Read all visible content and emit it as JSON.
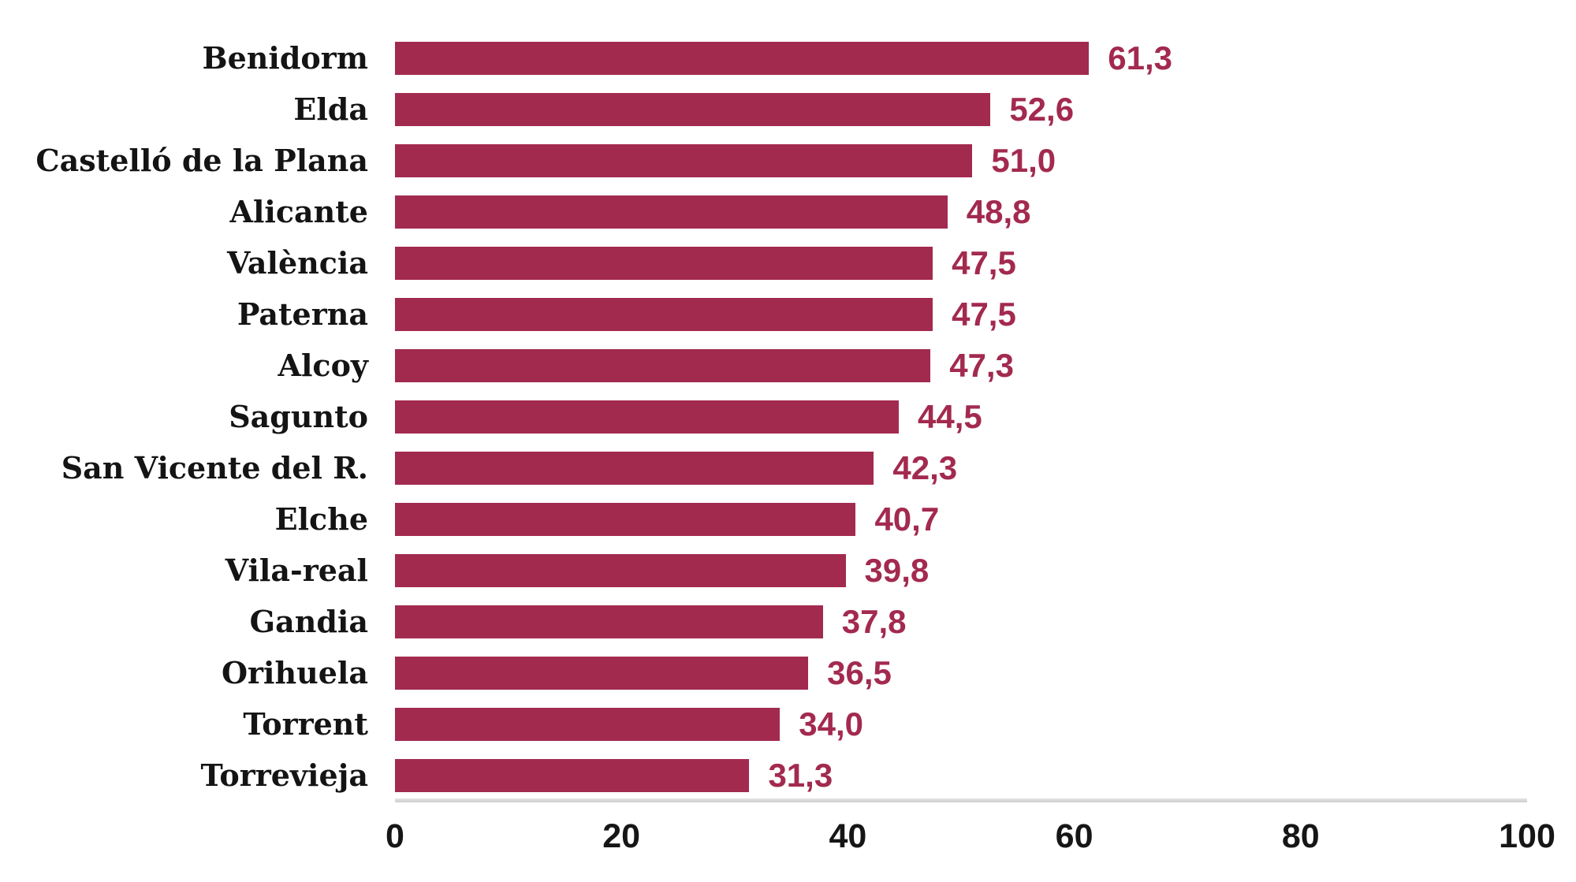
{
  "chart_data": {
    "type": "bar",
    "orientation": "horizontal",
    "title": "",
    "xlabel": "",
    "ylabel": "",
    "xlim": [
      0,
      100
    ],
    "grid": false,
    "legend": false,
    "categories": [
      "Benidorm",
      "Elda",
      "Castelló de la Plana",
      "Alicante",
      "València",
      "Paterna",
      "Alcoy",
      "Sagunto",
      "San Vicente del R.",
      "Elche",
      "Vila-real",
      "Gandia",
      "Orihuela",
      "Torrent",
      "Torrevieja"
    ],
    "values": [
      61.3,
      52.6,
      51.0,
      48.8,
      47.5,
      47.5,
      47.3,
      44.5,
      42.3,
      40.7,
      39.8,
      37.8,
      36.5,
      34.0,
      31.3
    ],
    "value_labels": [
      "61,3",
      "52,6",
      "51,0",
      "48,8",
      "47,5",
      "47,5",
      "47,3",
      "44,5",
      "42,3",
      "40,7",
      "39,8",
      "37,8",
      "36,5",
      "34,0",
      "31,3"
    ],
    "x_ticks": [
      {
        "label": "0",
        "value": 0
      },
      {
        "label": "20",
        "value": 20
      },
      {
        "label": "40",
        "value": 40
      },
      {
        "label": "60",
        "value": 60
      },
      {
        "label": "80",
        "value": 80
      },
      {
        "label": "100",
        "value": 100
      }
    ],
    "colors": {
      "bar": "#a32a4f",
      "value_label": "#a32a4f",
      "category_label": "#141414",
      "tick_label": "#161616",
      "axis_line": "#d6d6d6",
      "background": "#ffffff"
    }
  }
}
